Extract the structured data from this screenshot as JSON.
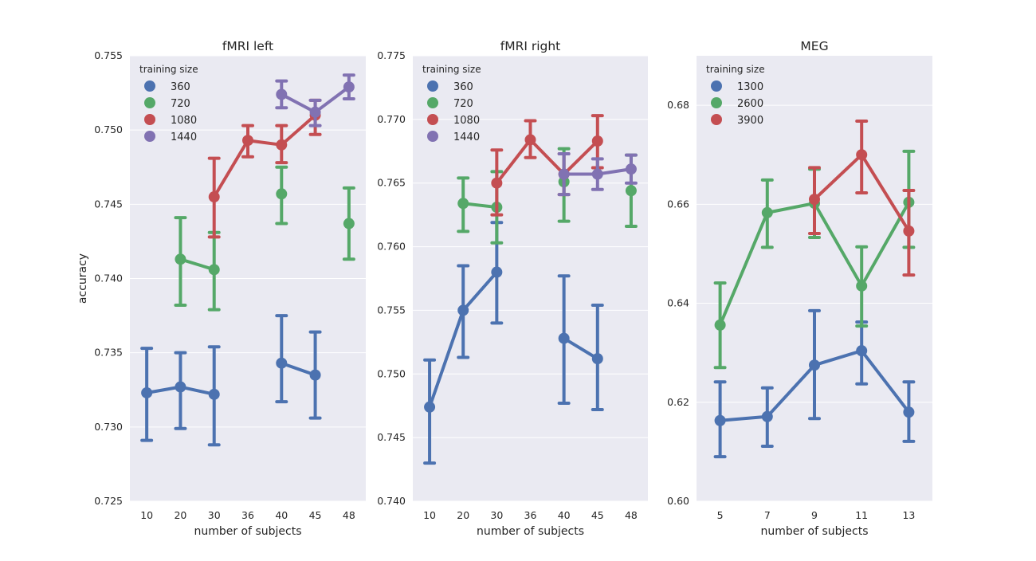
{
  "chart_data": [
    {
      "type": "line",
      "title": "fMRI left",
      "xlabel": "number of subjects",
      "ylabel": "accuracy",
      "categories": [
        "10",
        "20",
        "30",
        "36",
        "40",
        "45",
        "48"
      ],
      "ylim": [
        0.725,
        0.755
      ],
      "yticks": [
        0.725,
        0.73,
        0.735,
        0.74,
        0.745,
        0.75,
        0.755
      ],
      "ytick_labels": [
        "0.725",
        "0.730",
        "0.735",
        "0.740",
        "0.745",
        "0.750",
        "0.755"
      ],
      "grid": true,
      "legend": {
        "title": "training size",
        "placement": "top-left"
      },
      "series": [
        {
          "name": "360",
          "color": "#4c72b0",
          "values": [
            0.7323,
            0.7327,
            0.7322,
            null,
            0.7343,
            0.7335,
            null
          ],
          "err_low": [
            0.7291,
            0.7299,
            0.7288,
            null,
            0.7317,
            0.7306,
            null
          ],
          "err_high": [
            0.7353,
            0.735,
            0.7354,
            null,
            0.7375,
            0.7364,
            null
          ]
        },
        {
          "name": "720",
          "color": "#55a868",
          "values": [
            null,
            0.7413,
            0.7406,
            null,
            0.7457,
            null,
            0.7437
          ],
          "err_low": [
            null,
            0.7382,
            0.7379,
            null,
            0.7437,
            null,
            0.7413
          ],
          "err_high": [
            null,
            0.7441,
            0.7431,
            null,
            0.7475,
            null,
            0.7461
          ]
        },
        {
          "name": "1080",
          "color": "#c44e52",
          "values": [
            null,
            null,
            0.7455,
            0.7493,
            0.749,
            0.751,
            null
          ],
          "err_low": [
            null,
            null,
            0.7428,
            0.7482,
            0.7478,
            0.7497,
            null
          ],
          "err_high": [
            null,
            null,
            0.7481,
            0.7503,
            0.7503,
            0.752,
            null
          ]
        },
        {
          "name": "1440",
          "color": "#8172b2",
          "values": [
            null,
            null,
            null,
            null,
            0.7524,
            0.7512,
            0.7529
          ],
          "err_low": [
            null,
            null,
            null,
            null,
            0.7515,
            0.7503,
            0.7521
          ],
          "err_high": [
            null,
            null,
            null,
            null,
            0.7533,
            0.752,
            0.7537
          ]
        }
      ]
    },
    {
      "type": "line",
      "title": "fMRI right",
      "xlabel": "number of subjects",
      "ylabel": "",
      "categories": [
        "10",
        "20",
        "30",
        "36",
        "40",
        "45",
        "48"
      ],
      "ylim": [
        0.74,
        0.775
      ],
      "yticks": [
        0.74,
        0.745,
        0.75,
        0.755,
        0.76,
        0.765,
        0.77,
        0.775
      ],
      "ytick_labels": [
        "0.740",
        "0.745",
        "0.750",
        "0.755",
        "0.760",
        "0.765",
        "0.770",
        "0.775"
      ],
      "grid": true,
      "legend": {
        "title": "training size",
        "placement": "top-left"
      },
      "series": [
        {
          "name": "360",
          "color": "#4c72b0",
          "values": [
            0.7474,
            0.755,
            0.758,
            null,
            0.7528,
            0.7512,
            null
          ],
          "err_low": [
            0.743,
            0.7513,
            0.754,
            null,
            0.7477,
            0.7472,
            null
          ],
          "err_high": [
            0.7511,
            0.7585,
            0.7619,
            null,
            0.7577,
            0.7554,
            null
          ]
        },
        {
          "name": "720",
          "color": "#55a868",
          "values": [
            null,
            0.7634,
            0.7631,
            null,
            0.7651,
            null,
            0.7644
          ],
          "err_low": [
            null,
            0.7612,
            0.7603,
            null,
            0.762,
            null,
            0.7616
          ],
          "err_high": [
            null,
            0.7654,
            0.7659,
            null,
            0.7677,
            null,
            0.7672
          ]
        },
        {
          "name": "1080",
          "color": "#c44e52",
          "values": [
            null,
            null,
            0.765,
            0.7684,
            0.7657,
            0.7683,
            null
          ],
          "err_low": [
            null,
            null,
            0.7625,
            0.767,
            0.7641,
            0.7662,
            null
          ],
          "err_high": [
            null,
            null,
            0.7676,
            0.7699,
            0.7673,
            0.7703,
            null
          ]
        },
        {
          "name": "1440",
          "color": "#8172b2",
          "values": [
            null,
            null,
            null,
            null,
            0.7657,
            0.7657,
            0.7661
          ],
          "err_low": [
            null,
            null,
            null,
            null,
            0.7641,
            0.7645,
            0.765
          ],
          "err_high": [
            null,
            null,
            null,
            null,
            0.7673,
            0.7669,
            0.7672
          ]
        }
      ]
    },
    {
      "type": "line",
      "title": "MEG",
      "xlabel": "number of subjects",
      "ylabel": "",
      "categories": [
        "5",
        "7",
        "9",
        "11",
        "13"
      ],
      "ylim": [
        0.6,
        0.69
      ],
      "yticks": [
        0.6,
        0.62,
        0.64,
        0.66,
        0.68
      ],
      "ytick_labels": [
        "0.60",
        "0.62",
        "0.64",
        "0.66",
        "0.68"
      ],
      "grid": true,
      "legend": {
        "title": "training size",
        "placement": "top-left"
      },
      "series": [
        {
          "name": "1300",
          "color": "#4c72b0",
          "values": [
            0.6163,
            0.6171,
            0.6275,
            0.6304,
            0.618
          ],
          "err_low": [
            0.609,
            0.6111,
            0.6167,
            0.6237,
            0.6121
          ],
          "err_high": [
            0.6241,
            0.6229,
            0.6385,
            0.6362,
            0.6241
          ]
        },
        {
          "name": "2600",
          "color": "#55a868",
          "values": [
            0.6356,
            0.6583,
            0.6602,
            0.6435,
            0.6604
          ],
          "err_low": [
            0.627,
            0.6513,
            0.6533,
            0.6354,
            0.6513
          ],
          "err_high": [
            0.6441,
            0.6649,
            0.6671,
            0.6514,
            0.6707
          ]
        },
        {
          "name": "3900",
          "color": "#c44e52",
          "values": [
            null,
            null,
            0.661,
            0.67,
            0.6546
          ],
          "err_low": [
            null,
            null,
            0.6541,
            0.6623,
            0.6457
          ],
          "err_high": [
            null,
            null,
            0.6674,
            0.6768,
            0.6628
          ]
        }
      ]
    }
  ],
  "style": {
    "axes_background": "#eaeaf2",
    "grid_color": "#ffffff",
    "text_color": "#262626"
  }
}
